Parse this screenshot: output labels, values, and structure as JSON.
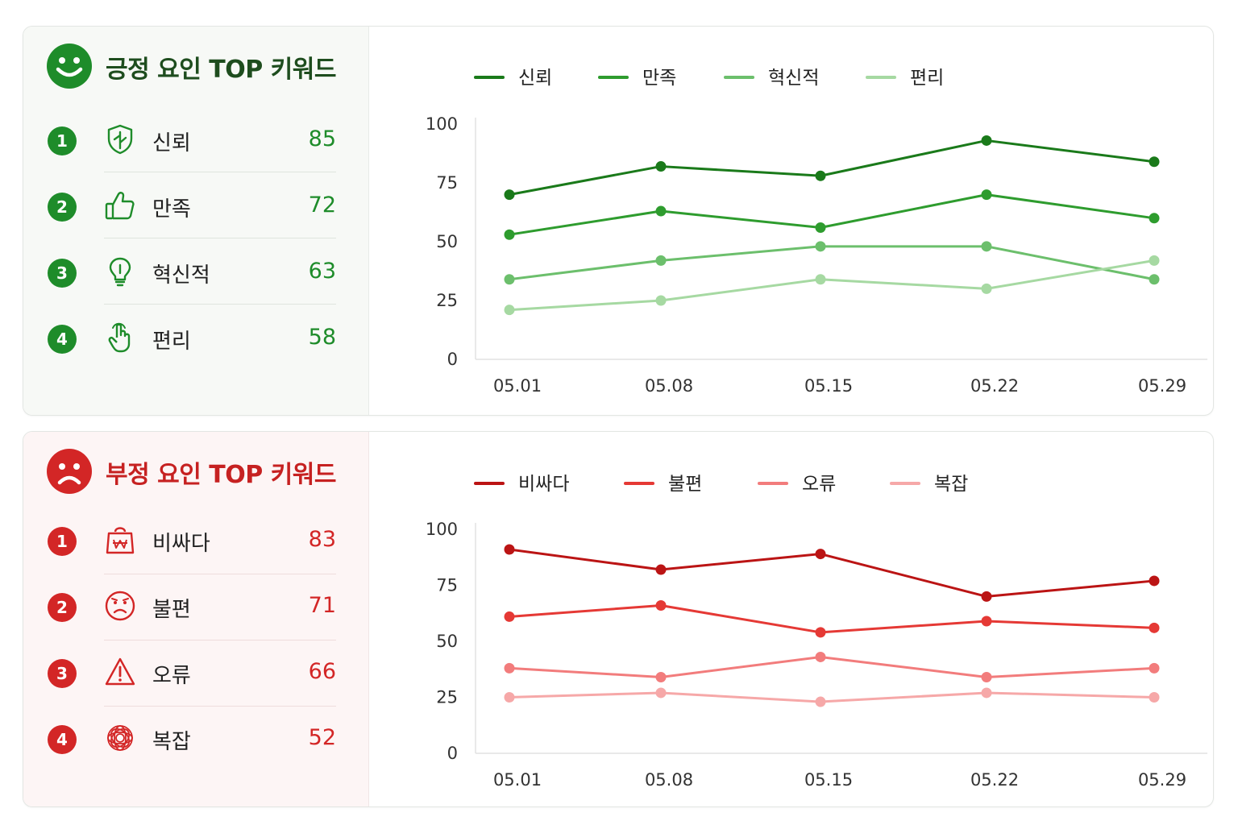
{
  "colors": {
    "positive": [
      "#1a7a1a",
      "#2e9c2e",
      "#6cbf6c",
      "#a6d9a2"
    ],
    "negative": [
      "#bb1414",
      "#e53935",
      "#f27c7c",
      "#f6a8a8"
    ],
    "positive_accent": "#1e8c2a",
    "negative_accent": "#d32626"
  },
  "positive": {
    "title": "긍정 요인 TOP 키워드",
    "face_icon": "smiley-face-icon",
    "keywords": [
      {
        "rank": "1",
        "icon": "shield-leaf-icon",
        "label": "신뢰",
        "score": "85"
      },
      {
        "rank": "2",
        "icon": "thumbs-up-icon",
        "label": "만족",
        "score": "72"
      },
      {
        "rank": "3",
        "icon": "lightbulb-icon",
        "label": "혁신적",
        "score": "63"
      },
      {
        "rank": "4",
        "icon": "hand-pointer-icon",
        "label": "편리",
        "score": "58"
      }
    ]
  },
  "negative": {
    "title": "부정 요인 TOP 키워드",
    "face_icon": "sad-face-icon",
    "keywords": [
      {
        "rank": "1",
        "icon": "price-bag-won-icon",
        "label": "비싸다",
        "score": "83"
      },
      {
        "rank": "2",
        "icon": "frown-face-icon",
        "label": "불편",
        "score": "71"
      },
      {
        "rank": "3",
        "icon": "warning-triangle-icon",
        "label": "오류",
        "score": "66"
      },
      {
        "rank": "4",
        "icon": "tangle-icon",
        "label": "복잡",
        "score": "52"
      }
    ]
  },
  "chart_data": [
    {
      "type": "line",
      "x": [
        "05.01",
        "05.08",
        "05.15",
        "05.22",
        "05.29"
      ],
      "ylim": [
        0,
        100
      ],
      "yticks": [
        "0",
        "25",
        "50",
        "75",
        "100"
      ],
      "grid": false,
      "legend": "top",
      "series": [
        {
          "name": "신뢰",
          "values": [
            70,
            82,
            78,
            93,
            84
          ]
        },
        {
          "name": "만족",
          "values": [
            53,
            63,
            56,
            70,
            60
          ]
        },
        {
          "name": "혁신적",
          "values": [
            34,
            42,
            48,
            48,
            34
          ]
        },
        {
          "name": "편리",
          "values": [
            21,
            25,
            34,
            30,
            42
          ]
        }
      ]
    },
    {
      "type": "line",
      "x": [
        "05.01",
        "05.08",
        "05.15",
        "05.22",
        "05.29"
      ],
      "ylim": [
        0,
        100
      ],
      "yticks": [
        "0",
        "25",
        "50",
        "75",
        "100"
      ],
      "grid": false,
      "legend": "top",
      "series": [
        {
          "name": "비싸다",
          "values": [
            91,
            82,
            89,
            70,
            77
          ]
        },
        {
          "name": "불편",
          "values": [
            61,
            66,
            54,
            59,
            56
          ]
        },
        {
          "name": "오류",
          "values": [
            38,
            34,
            43,
            34,
            38
          ]
        },
        {
          "name": "복잡",
          "values": [
            25,
            27,
            23,
            27,
            25
          ]
        }
      ]
    }
  ]
}
